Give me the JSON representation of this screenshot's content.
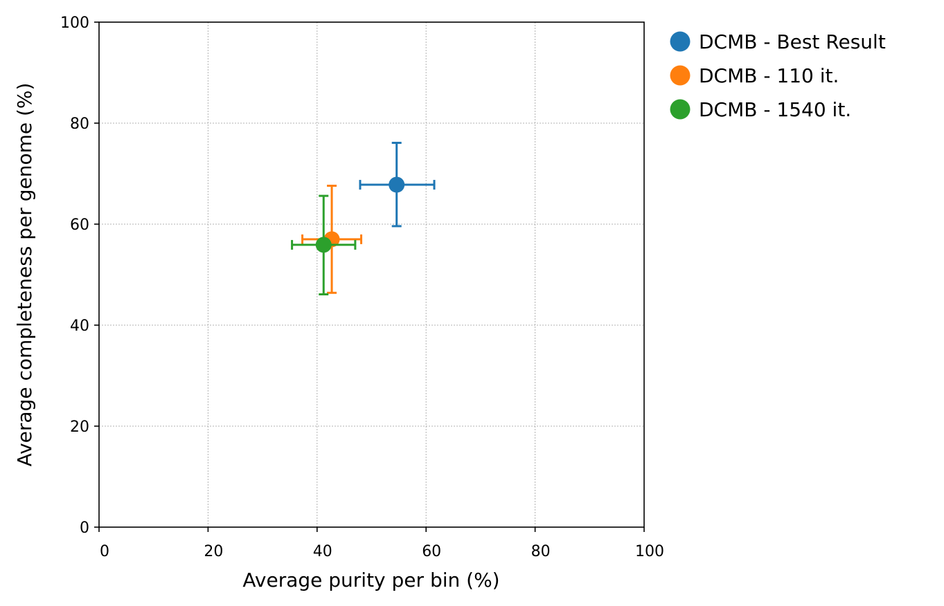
{
  "chart_data": {
    "type": "scatter",
    "title": "",
    "xlabel": "Average purity per bin (%)",
    "ylabel": "Average completeness per genome (%)",
    "xlim": [
      0,
      100
    ],
    "ylim": [
      0,
      100
    ],
    "x_ticks": [
      0,
      20,
      40,
      60,
      80,
      100
    ],
    "y_ticks": [
      0,
      20,
      40,
      60,
      80,
      100
    ],
    "grid": true,
    "legend_position": "outside-top-right",
    "series": [
      {
        "name": "DCMB - Best Result",
        "color": "#1f77b4",
        "x": 54.6,
        "y": 67.8,
        "x_err": [
          47.9,
          61.5
        ],
        "y_err": [
          59.6,
          76.1
        ]
      },
      {
        "name": "DCMB - 110 it.",
        "color": "#ff7f0e",
        "x": 42.7,
        "y": 57.0,
        "x_err": [
          37.3,
          48.1
        ],
        "y_err": [
          46.4,
          67.6
        ]
      },
      {
        "name": "DCMB - 1540 it.",
        "color": "#2ca02c",
        "x": 41.2,
        "y": 55.9,
        "x_err": [
          35.4,
          47.0
        ],
        "y_err": [
          46.1,
          65.6
        ]
      }
    ]
  }
}
